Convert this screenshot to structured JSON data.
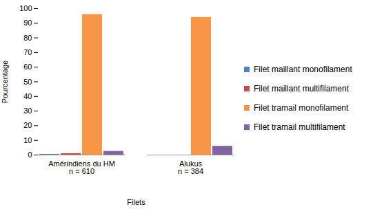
{
  "chart_data": {
    "type": "bar",
    "categories": [
      "Amérindiens du HM\nn = 610",
      "Alukus\nn = 384"
    ],
    "series": [
      {
        "name": "Filet maillant monofilament",
        "color": "#4f81bd",
        "values": [
          0.5,
          0
        ]
      },
      {
        "name": "Filet maillant multifilament",
        "color": "#c0504d",
        "values": [
          1,
          0
        ]
      },
      {
        "name": "Filet tramail monofilament",
        "color": "#f79646",
        "values": [
          96,
          94
        ]
      },
      {
        "name": "Filet tramail multifilament",
        "color": "#8064a2",
        "values": [
          2.5,
          6
        ]
      }
    ],
    "x_label": "Filets",
    "y_label": "Pourcentage",
    "ylim": [
      0,
      100
    ],
    "yticks": [
      0,
      10,
      20,
      30,
      40,
      50,
      60,
      70,
      80,
      90,
      100
    ],
    "grid": false,
    "legend": "right"
  }
}
